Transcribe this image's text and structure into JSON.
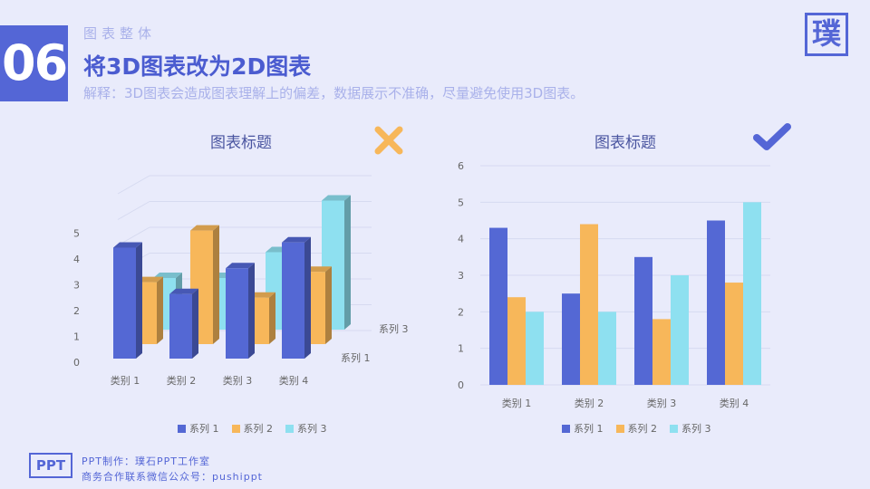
{
  "header": {
    "number": "06",
    "section_label": "图表整体",
    "title": "将3D图表改为2D图表",
    "subtitle": "解释：3D图表会造成图表理解上的偏差，数据展示不准确，尽量避免使用3D图表。",
    "logo_text": "璞"
  },
  "footer": {
    "logo_text": "PPT",
    "line1": "PPT制作：璞石PPT工作室",
    "line2": "商务合作联系微信公众号：pushippt"
  },
  "colors": {
    "series1": "#5468d4",
    "series2": "#f7b75a",
    "series3": "#8ee0f0",
    "cross": "#f7b75a",
    "check": "#5466d6"
  },
  "icons": {
    "left_marker": "cross-icon",
    "right_marker": "check-icon"
  },
  "chart_data": [
    {
      "type": "bar",
      "variant": "3d",
      "title": "图表标题",
      "categories": [
        "类别 1",
        "类别 2",
        "类别 3",
        "类别 4"
      ],
      "series": [
        {
          "name": "系列 1",
          "values": [
            4.3,
            2.5,
            3.5,
            4.5
          ]
        },
        {
          "name": "系列 2",
          "values": [
            2.4,
            4.4,
            1.8,
            2.8
          ]
        },
        {
          "name": "系列 3",
          "values": [
            2,
            2,
            3,
            5
          ]
        }
      ],
      "depth_labels": [
        "系列 3",
        "系列 1"
      ],
      "yticks": [
        0,
        1,
        2,
        3,
        4,
        5
      ],
      "ylim": [
        0,
        5
      ],
      "legend_position": "bottom"
    },
    {
      "type": "bar",
      "title": "图表标题",
      "categories": [
        "类别 1",
        "类别 2",
        "类别 3",
        "类别 4"
      ],
      "series": [
        {
          "name": "系列 1",
          "values": [
            4.3,
            2.5,
            3.5,
            4.5
          ]
        },
        {
          "name": "系列 2",
          "values": [
            2.4,
            4.4,
            1.8,
            2.8
          ]
        },
        {
          "name": "系列 3",
          "values": [
            2,
            2,
            3,
            5
          ]
        }
      ],
      "yticks": [
        0,
        1,
        2,
        3,
        4,
        5,
        6
      ],
      "ylim": [
        0,
        6
      ],
      "grid": true,
      "legend_position": "bottom"
    }
  ]
}
